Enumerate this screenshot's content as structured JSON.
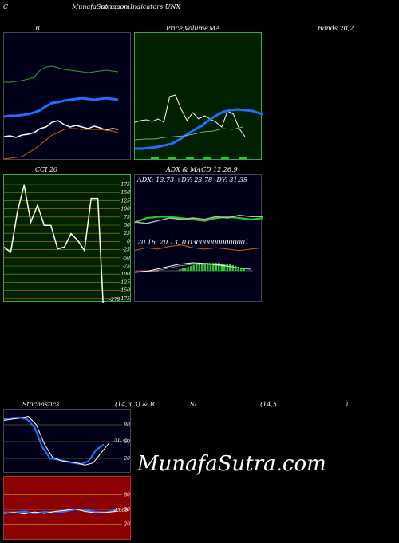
{
  "header": {
    "left": "C",
    "title": "MunafaSutra.com",
    "subtitle": "common Indicators UNX"
  },
  "labels": {
    "b": "B",
    "price": "Price,",
    "volume": "Volume",
    "ma": "MA",
    "bands": "Bands 20,2",
    "cci": "CCI 20",
    "adx_macd": "ADX  & MACD 12,26,9",
    "adx_values": "ADX: 13.73  +DY: 23.78  -DY: 31.35",
    "macd_values": "20.16,  20.13,  0.030000000000001",
    "cci_value": "-279",
    "stoch": "Stochastics",
    "stoch_params": "(14,3,3) & R",
    "si": "SI",
    "rsi_params": "(14,5",
    "rsi_close": ")",
    "watermark": "MunafaSutra.com"
  },
  "colors": {
    "panel_bg": "#000018",
    "price_bg": "#002000",
    "cci_bg": "#002200",
    "rsi_bg": "#8b0000",
    "blue": "#1e6fff",
    "green": "#22cc22",
    "orange": "#cc6600",
    "white": "#ffffff"
  },
  "chart_data": [
    {
      "type": "line",
      "panel": "bollinger",
      "series": [
        {
          "values": [
            130,
            129,
            131,
            128,
            127,
            125,
            120,
            118,
            112,
            110,
            115,
            118,
            116,
            118,
            120,
            117,
            119,
            122,
            120,
            121
          ]
        },
        {
          "values": [
            112,
            112,
            111,
            110,
            108,
            106,
            97,
            93,
            92,
            94,
            96,
            97,
            98,
            99,
            100,
            99,
            98,
            97,
            98,
            99
          ]
        },
        {
          "values": [
            135,
            134,
            134,
            133,
            132,
            130,
            127,
            122,
            118,
            117,
            115,
            114,
            113,
            112,
            113,
            114,
            113,
            112,
            113,
            114
          ]
        },
        {
          "values": [
            158,
            157,
            156,
            155,
            150,
            146,
            140,
            134,
            128,
            125,
            121,
            120,
            120,
            121,
            121,
            121,
            121,
            122,
            123,
            125
          ]
        }
      ]
    },
    {
      "type": "line",
      "panel": "price_ma",
      "series": [
        {
          "values": [
            112,
            110,
            109,
            111,
            108,
            112,
            80,
            78,
            96,
            110,
            100,
            108,
            104,
            108,
            112,
            118,
            98,
            102,
            120,
            130
          ]
        },
        {
          "values": [
            145,
            145,
            144,
            143,
            141,
            139,
            134,
            128,
            122,
            117,
            110,
            104,
            99,
            97,
            96,
            97,
            98,
            101,
            104,
            107
          ]
        },
        {
          "values": [
            134,
            133,
            133,
            131,
            130,
            129,
            127,
            124,
            123,
            120,
            121,
            118
          ]
        }
      ]
    },
    {
      "type": "line",
      "panel": "cci",
      "yticks": [
        "175",
        "150",
        "125",
        "100",
        "75",
        "50",
        "25",
        "0",
        "-25",
        "-50",
        "-75",
        "-100",
        "-125",
        "-150",
        "-175"
      ],
      "values": [
        -25,
        -40,
        80,
        160,
        50,
        100,
        40,
        40,
        -30,
        -25,
        15,
        -5,
        -35,
        120,
        120,
        -279
      ],
      "value_label": "-279"
    },
    {
      "type": "line",
      "panel": "adx",
      "series": [
        {
          "name": "ADX",
          "values": [
            12,
            14,
            13,
            15,
            16,
            14,
            13,
            14,
            13,
            12,
            13,
            14
          ]
        },
        {
          "name": "+DY",
          "values": [
            21,
            24,
            25,
            25,
            24,
            23,
            22,
            24,
            25,
            24,
            23,
            24
          ]
        },
        {
          "name": "-DY",
          "values": [
            27,
            26,
            28,
            30,
            29,
            30,
            29,
            31,
            30,
            32,
            31,
            31
          ]
        }
      ]
    },
    {
      "type": "line",
      "panel": "stochastics",
      "yticks": [
        "80",
        "50",
        "20"
      ],
      "series": [
        {
          "values": [
            90,
            92,
            93,
            90,
            75,
            40,
            20,
            18,
            15,
            12,
            10,
            15,
            35,
            45
          ]
        },
        {
          "values": [
            88,
            90,
            92,
            95,
            80,
            45,
            22,
            16,
            14,
            12,
            8,
            12,
            30,
            48
          ]
        }
      ],
      "value_label": "51.75"
    },
    {
      "type": "line",
      "panel": "rsi",
      "yticks": [
        "80",
        "50",
        "20"
      ],
      "series": [
        {
          "values": [
            44,
            44,
            46,
            42,
            45,
            44,
            46,
            50,
            49,
            45,
            44,
            48
          ]
        },
        {
          "values": [
            42,
            44,
            41,
            45,
            42,
            46,
            48,
            51,
            46,
            43,
            44,
            46
          ]
        }
      ],
      "value_label": "45.68"
    }
  ]
}
